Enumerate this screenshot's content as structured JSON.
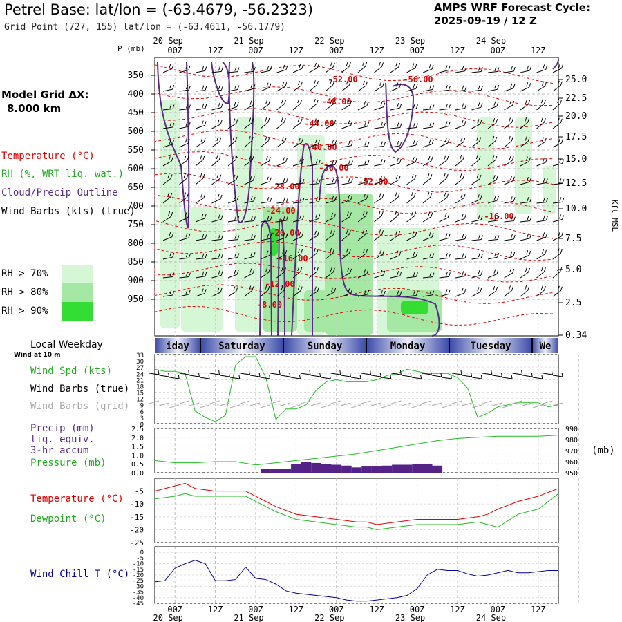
{
  "header": {
    "title": "Petrel Base:  lat/lon = (-63.4679, -56.2323)",
    "subtitle": "Grid Point (727, 155) lat/lon = (-63.4611, -56.1779)",
    "cycle_line1": "AMPS WRF Forecast Cycle:",
    "cycle_line2": "2025-09-19 / 12  Z"
  },
  "legend": {
    "model_grid_1": "Model Grid ΔX:",
    "model_grid_2": "8.000 km",
    "temperature": "Temperature (°C)",
    "rh": "RH (%, WRT liq. wat.)",
    "cloud": "Cloud/Precip Outline",
    "barbs": "Wind Barbs (kts) (true)",
    "rh70": "RH > 70%",
    "rh80": "RH > 80%",
    "rh90": "RH > 90%",
    "rh_colors": [
      "#d6f7d6",
      "#a4e8a4",
      "#33dd33"
    ]
  },
  "axes": {
    "p_label": "P (mb)",
    "kft_label": "Kft MSL",
    "pressure_ticks": [
      "350",
      "400",
      "450",
      "500",
      "550",
      "600",
      "650",
      "700",
      "750",
      "800",
      "850",
      "900",
      "950"
    ],
    "kft_ticks": [
      "25.0",
      "22.5",
      "20.0",
      "17.5",
      "15.0",
      "12.5",
      "10.0",
      "7.5",
      "5.0",
      "2.5",
      "0.34"
    ],
    "time_top": [
      "00Z",
      "12Z",
      "00Z",
      "12Z",
      "00Z",
      "12Z",
      "00Z",
      "12Z",
      "00Z",
      "12Z"
    ],
    "dates": [
      "20 Sep",
      "21 Sep",
      "22 Sep",
      "23 Sep",
      "24 Sep"
    ]
  },
  "weekday": {
    "label": "Local Weekday",
    "sublabel": "Wind at 10 m",
    "days": [
      "iday",
      "Saturday",
      "Sunday",
      "Monday",
      "Tuesday",
      "We"
    ]
  },
  "wind_panel": {
    "spd": "Wind Spd (kts)",
    "barbs_true": "Wind Barbs (true)",
    "barbs_grid": "Wind Barbs (grid)",
    "yticks": [
      "33",
      "30",
      "27",
      "24",
      "21",
      "18",
      "15",
      "12",
      "9",
      "6",
      "3",
      "0"
    ]
  },
  "precip_panel": {
    "l1": "Precip (mm)",
    "l2": "liq. equiv.",
    "l3": "3-hr accum",
    "l4": "Pressure (mb)",
    "yticks": [
      "2.5",
      "2.0",
      "1.5",
      "1.0",
      "0.5",
      "0.0"
    ],
    "yticks_right": [
      "990",
      "980",
      "970",
      "960",
      "950"
    ],
    "unit_right": "(mb)"
  },
  "temp_panel": {
    "temp": "Temperature (°C)",
    "dew": "Dewpoint (°C)",
    "yticks": [
      "-5",
      "-10",
      "-15",
      "-20",
      "-25"
    ]
  },
  "chill_panel": {
    "label": "Wind Chill T (°C)",
    "yticks": [
      "0",
      "-5",
      "-10",
      "-15",
      "-20",
      "-25",
      "-30",
      "-35",
      "-40",
      "-45"
    ]
  },
  "contour_labels": [
    "-52.00",
    "-56.00",
    "-48.00",
    "-44.00",
    "-40.00",
    "-36.00",
    "-32.00",
    "-28.00",
    "-24.00",
    "-20.00",
    "-16.00",
    "-16.00",
    "-12.00",
    "-8.00"
  ],
  "colors": {
    "temp": "#e00000",
    "green": "#22bb22",
    "purple": "#5a2a8a",
    "blue": "#000099",
    "grid": "#999999"
  },
  "chart_data": [
    {
      "type": "line",
      "title": "Wind Spd (kts)",
      "x_hours": [
        0,
        3,
        6,
        9,
        12,
        15,
        18,
        21,
        24,
        27,
        30,
        33,
        36,
        39,
        42,
        45,
        48,
        51,
        54,
        57,
        60,
        63,
        66,
        69,
        72,
        75,
        78,
        81,
        84,
        87,
        90,
        93,
        96,
        99,
        102,
        105,
        108,
        111,
        114,
        117,
        120
      ],
      "series": [
        {
          "name": "Wind Spd (kts)",
          "values": [
            26,
            25,
            25,
            24,
            6,
            3,
            1,
            4,
            28,
            32,
            32,
            22,
            2,
            7,
            7,
            9,
            16,
            20,
            21,
            20,
            20,
            20,
            21,
            23,
            24,
            26,
            25,
            24,
            24,
            24,
            22,
            17,
            3,
            5,
            8,
            9,
            10,
            10,
            10,
            8,
            9
          ]
        }
      ],
      "ylim": [
        0,
        33
      ]
    },
    {
      "type": "bar",
      "title": "Precip (mm) liq. equiv. 3-hr accum",
      "x_hours": [
        0,
        3,
        6,
        9,
        12,
        15,
        18,
        21,
        24,
        27,
        30,
        33,
        36,
        39,
        42,
        45,
        48,
        51,
        54,
        57,
        60,
        63,
        66,
        69,
        72,
        75,
        78,
        81,
        84,
        87,
        90,
        93,
        96,
        99,
        102,
        105,
        108,
        111,
        114,
        117,
        120
      ],
      "values": [
        0,
        0,
        0,
        0,
        0,
        0,
        0,
        0,
        0,
        0,
        0,
        0.2,
        0.2,
        0.2,
        0.5,
        0.6,
        0.55,
        0.5,
        0.45,
        0.4,
        0.3,
        0.35,
        0.35,
        0.4,
        0.45,
        0.45,
        0.5,
        0.5,
        0.4,
        0,
        0,
        0,
        0,
        0,
        0,
        0,
        0,
        0,
        0,
        0,
        0
      ],
      "ylim": [
        0,
        2.5
      ]
    },
    {
      "type": "line",
      "title": "Pressure (mb)",
      "x_hours": [
        0,
        6,
        12,
        18,
        24,
        30,
        36,
        42,
        48,
        54,
        60,
        66,
        72,
        78,
        84,
        90,
        96,
        102,
        108,
        114,
        120
      ],
      "values": [
        961,
        959,
        959,
        960,
        960,
        957,
        959,
        961,
        963,
        965,
        967,
        970,
        973,
        976,
        979,
        981,
        982,
        983,
        983,
        983,
        984
      ],
      "ylim": [
        950,
        990
      ]
    },
    {
      "type": "line",
      "title": "Temperature / Dewpoint (°C)",
      "x_hours": [
        0,
        6,
        9,
        12,
        18,
        24,
        27,
        30,
        36,
        42,
        48,
        54,
        60,
        63,
        66,
        72,
        78,
        84,
        90,
        96,
        99,
        102,
        108,
        114,
        120
      ],
      "series": [
        {
          "name": "Temperature (°C)",
          "values": [
            -5,
            -3,
            -2,
            -4,
            -5,
            -5,
            -5,
            -7,
            -11,
            -14,
            -15,
            -16,
            -17,
            -17,
            -18,
            -17,
            -16,
            -16,
            -16,
            -15,
            -14,
            -12,
            -9,
            -7,
            -4
          ]
        },
        {
          "name": "Dewpoint (°C)",
          "values": [
            -8,
            -7,
            -6,
            -7,
            -7,
            -7,
            -7,
            -9,
            -13,
            -16,
            -17,
            -18,
            -19,
            -19,
            -20,
            -19,
            -18,
            -18,
            -18,
            -17,
            -18,
            -19,
            -14,
            -12,
            -6
          ]
        }
      ],
      "ylim": [
        -25,
        0
      ]
    },
    {
      "type": "line",
      "title": "Wind Chill T (°C)",
      "x_hours": [
        0,
        3,
        6,
        9,
        12,
        15,
        18,
        21,
        24,
        27,
        30,
        33,
        36,
        39,
        42,
        45,
        48,
        51,
        54,
        57,
        60,
        63,
        66,
        69,
        72,
        75,
        78,
        81,
        84,
        87,
        90,
        93,
        96,
        99,
        102,
        105,
        108,
        111,
        114,
        117,
        120
      ],
      "values": [
        -26,
        -25,
        -14,
        -10,
        -7,
        -10,
        -25,
        -25,
        -24,
        -13,
        -23,
        -24,
        -28,
        -34,
        -36,
        -37,
        -38,
        -39,
        -40,
        -42,
        -43,
        -43,
        -42,
        -41,
        -40,
        -38,
        -32,
        -20,
        -15,
        -16,
        -16,
        -19,
        -21,
        -20,
        -18,
        -16,
        -18,
        -18,
        -17,
        -16,
        -16
      ],
      "ylim": [
        -45,
        5
      ]
    }
  ]
}
